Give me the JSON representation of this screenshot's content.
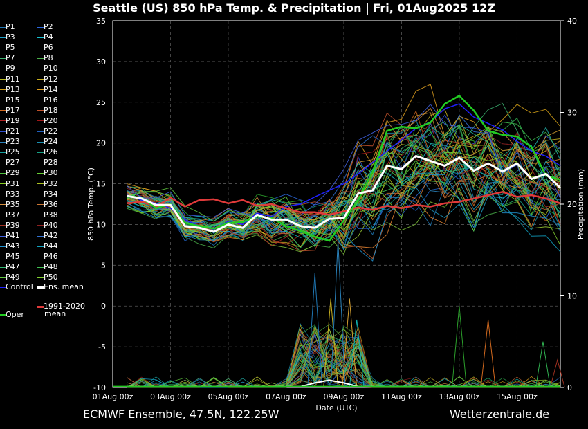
{
  "title": "Seattle  (US)  850 hPa Temp. & Precipitation | Fri, 01Aug2025 12Z",
  "footer": {
    "left": "ECMWF Ensemble, 47.5N, 122.25W",
    "right": "Wetterzentrale.de"
  },
  "legend": {
    "members": [
      "P1",
      "P2",
      "P3",
      "P4",
      "P5",
      "P6",
      "P7",
      "P8",
      "P9",
      "P10",
      "P11",
      "P12",
      "P13",
      "P14",
      "P15",
      "P16",
      "P17",
      "P18",
      "P19",
      "P20",
      "P21",
      "P22",
      "P23",
      "P24",
      "P25",
      "P26",
      "P27",
      "P28",
      "P29",
      "P30",
      "P31",
      "P32",
      "P33",
      "P34",
      "P35",
      "P36",
      "P37",
      "P38",
      "P39",
      "P40",
      "P41",
      "P42",
      "P43",
      "P44",
      "P45",
      "P46",
      "P47",
      "P48",
      "P49",
      "P50"
    ],
    "member_colors": [
      "#1f77b4",
      "#2a66d9",
      "#1ea0c8",
      "#17becf",
      "#20b2aa",
      "#2ca02c",
      "#3cb371",
      "#4ab04a",
      "#7cbf3a",
      "#9acd32",
      "#bcbd22",
      "#c8b020",
      "#d4a017",
      "#e0a020",
      "#e6952a",
      "#e08030",
      "#d2691e",
      "#c0502a",
      "#b22222",
      "#a01818",
      "#3050d0",
      "#2060c0",
      "#2980b9",
      "#1a8fb0",
      "#16a0a0",
      "#16a085",
      "#22aa66",
      "#30b050",
      "#50c040",
      "#66cc33",
      "#88cc22",
      "#aac020",
      "#c8b428",
      "#d6a030",
      "#d89040",
      "#cc7733",
      "#c06030",
      "#b04828",
      "#a03020",
      "#902020",
      "#4060e0",
      "#3070d0",
      "#2090d0",
      "#10a0c0",
      "#10b0b0",
      "#20b090",
      "#30b870",
      "#40c050",
      "#60c840",
      "#80d030"
    ],
    "control_label": "Control",
    "control_color": "#2020ff",
    "ensmean_label": "Ens. mean",
    "ensmean_color": "#ffffff",
    "clim_label_1": "1991-2020",
    "clim_label_2": "mean",
    "clim_color": "#e03a3a",
    "oper_label": "Oper",
    "oper_color": "#22cc22"
  },
  "chart_data": {
    "type": "line",
    "title": "Seattle  (US)  850 hPa Temp. & Precipitation | Fri, 01Aug2025 12Z",
    "xlabel": "Date (UTC)",
    "ylabel": "850 hPa Temp. (°C)",
    "y2label": "Precipitation (mm)",
    "xlim": [
      "01Aug 00z",
      "16Aug 12z"
    ],
    "x_tick_labels": [
      "01Aug 00z",
      "03Aug 00z",
      "05Aug 00z",
      "07Aug 00z",
      "09Aug 00z",
      "11Aug 00z",
      "13Aug 00z",
      "15Aug 00z"
    ],
    "ylim": [
      -10,
      35
    ],
    "y_ticks": [
      -10,
      -5,
      0,
      5,
      10,
      15,
      20,
      25,
      30,
      35
    ],
    "y2lim": [
      0,
      40
    ],
    "y2_ticks": [
      0,
      10,
      20,
      30,
      40
    ],
    "grid": true,
    "series": [
      {
        "name": "1991-2020 mean",
        "x": [
          0.5,
          1,
          1.5,
          2,
          2.5,
          3,
          3.5,
          4,
          4.5,
          5,
          5.5,
          6,
          6.5,
          7,
          7.5,
          8,
          8.5,
          9,
          9.5,
          10,
          10.5,
          11,
          11.5,
          12,
          12.5,
          13,
          13.5,
          14,
          14.5,
          15,
          15.5
        ],
        "y": [
          12.6,
          12.8,
          12.2,
          13.3,
          12.2,
          13.0,
          13.1,
          12.6,
          13.0,
          12.3,
          12.5,
          12.0,
          11.5,
          11.5,
          11.2,
          11.6,
          12.1,
          11.8,
          12.3,
          12.0,
          12.4,
          12.2,
          12.6,
          12.8,
          13.2,
          13.6,
          14.0,
          13.4,
          13.6,
          13.2,
          12.6
        ]
      },
      {
        "name": "Oper",
        "x": [
          0.5,
          1,
          1.5,
          2,
          2.5,
          3,
          3.5,
          4,
          4.5,
          5,
          5.5,
          6,
          6.5,
          7,
          7.5,
          8,
          8.5,
          9,
          9.5,
          10,
          10.5,
          11,
          11.5,
          12,
          12.5,
          13,
          13.5,
          14,
          14.5,
          15,
          15.5
        ],
        "y": [
          13.5,
          13.3,
          12.0,
          12.5,
          10.2,
          9.8,
          9.5,
          10.2,
          10.3,
          11.0,
          10.8,
          9.8,
          9.2,
          8.5,
          8.0,
          10.5,
          13.0,
          16.5,
          21.5,
          22.0,
          21.8,
          22.5,
          24.8,
          25.8,
          24.0,
          21.5,
          21.0,
          20.8,
          19.5,
          16.0,
          15.5
        ]
      },
      {
        "name": "Ens. mean",
        "x": [
          0.5,
          1,
          1.5,
          2,
          2.5,
          3,
          3.5,
          4,
          4.5,
          5,
          5.5,
          6,
          6.5,
          7,
          7.5,
          8,
          8.5,
          9,
          9.5,
          10,
          10.5,
          11,
          11.5,
          12,
          12.5,
          13,
          13.5,
          14,
          14.5,
          15,
          15.5
        ],
        "y": [
          13.5,
          13.2,
          12.4,
          12.4,
          9.8,
          9.6,
          9.1,
          10.0,
          9.6,
          11.2,
          10.6,
          10.6,
          9.8,
          9.6,
          10.7,
          10.8,
          13.8,
          14.2,
          17.2,
          16.8,
          18.4,
          17.8,
          17.2,
          18.2,
          16.6,
          17.5,
          16.5,
          17.5,
          15.6,
          16.2,
          14.5
        ]
      },
      {
        "name": "Control",
        "x": [
          0.5,
          1,
          1.5,
          2,
          2.5,
          3,
          3.5,
          4,
          4.5,
          5,
          5.5,
          6,
          6.5,
          7,
          7.5,
          8,
          8.5,
          9,
          9.5,
          10,
          10.5,
          11,
          11.5,
          12,
          12.5,
          13,
          13.5,
          14,
          14.5,
          15,
          15.5
        ],
        "y": [
          13.6,
          13.0,
          12.6,
          12.0,
          10.6,
          9.8,
          9.4,
          10.4,
          10.0,
          11.4,
          11.0,
          12.2,
          12.5,
          13.4,
          14.2,
          15.0,
          16.2,
          17.6,
          19.0,
          20.4,
          21.8,
          22.6,
          24.2,
          24.8,
          23.2,
          22.4,
          21.6,
          20.2,
          19.0,
          18.4,
          17.2
        ]
      }
    ],
    "precip_peaks": [
      {
        "x": 7.0,
        "mm": 12.5
      },
      {
        "x": 7.55,
        "mm": 9.7
      },
      {
        "x": 7.8,
        "mm": 16.0
      },
      {
        "x": 8.2,
        "mm": 9.7
      },
      {
        "x": 8.45,
        "mm": 7.4
      },
      {
        "x": 12.0,
        "mm": 8.9
      },
      {
        "x": 13.0,
        "mm": 7.4
      },
      {
        "x": 14.9,
        "mm": 5.0
      },
      {
        "x": 15.4,
        "mm": 3.0
      }
    ]
  }
}
